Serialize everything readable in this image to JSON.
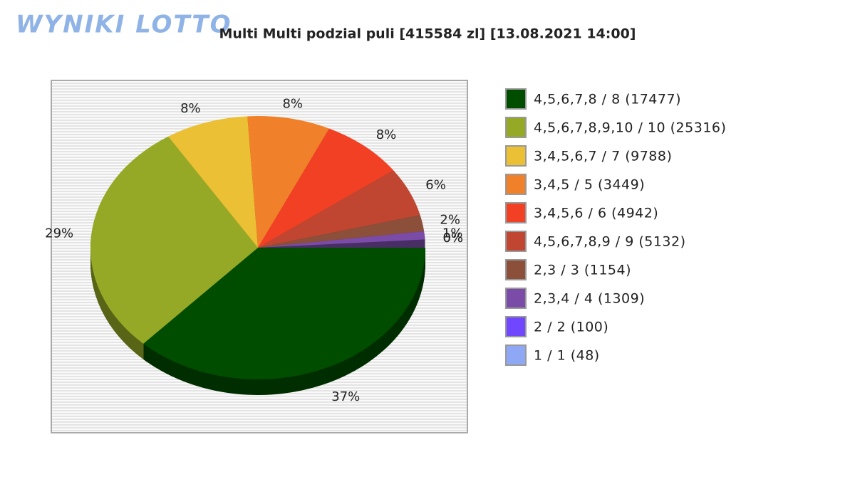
{
  "logo": "WYNIKI LOTTO",
  "chart_data": {
    "type": "pie",
    "title": "Multi Multi podzial puli [415584 zl] [13.08.2021 14:00]",
    "categories": [
      "4,5,6,7,8 / 8 (17477)",
      "4,5,6,7,8,9,10 / 10 (25316)",
      "3,4,5,6,7 / 7 (9788)",
      "3,4,5 / 5 (3449)",
      "3,4,5,6 / 6 (4942)",
      "4,5,6,7,8,9 / 9 (5132)",
      "2,3 / 3 (1154)",
      "2,3,4 / 4 (1309)",
      "2 / 2 (100)",
      "1 / 1 (48)"
    ],
    "values": [
      37,
      29,
      8,
      8,
      8,
      6,
      2,
      1,
      0,
      0
    ],
    "value_labels": [
      "37%",
      "29%",
      "8%",
      "8%",
      "8%",
      "6%",
      "2%",
      "1%",
      "0%",
      "0%"
    ],
    "colors": [
      "#004d00",
      "#95a926",
      "#ebc034",
      "#f0812a",
      "#f24024",
      "#c14631",
      "#8b4f3a",
      "#7a4ca8",
      "#7047ff",
      "#8fa8f5"
    ],
    "legend": "right"
  }
}
